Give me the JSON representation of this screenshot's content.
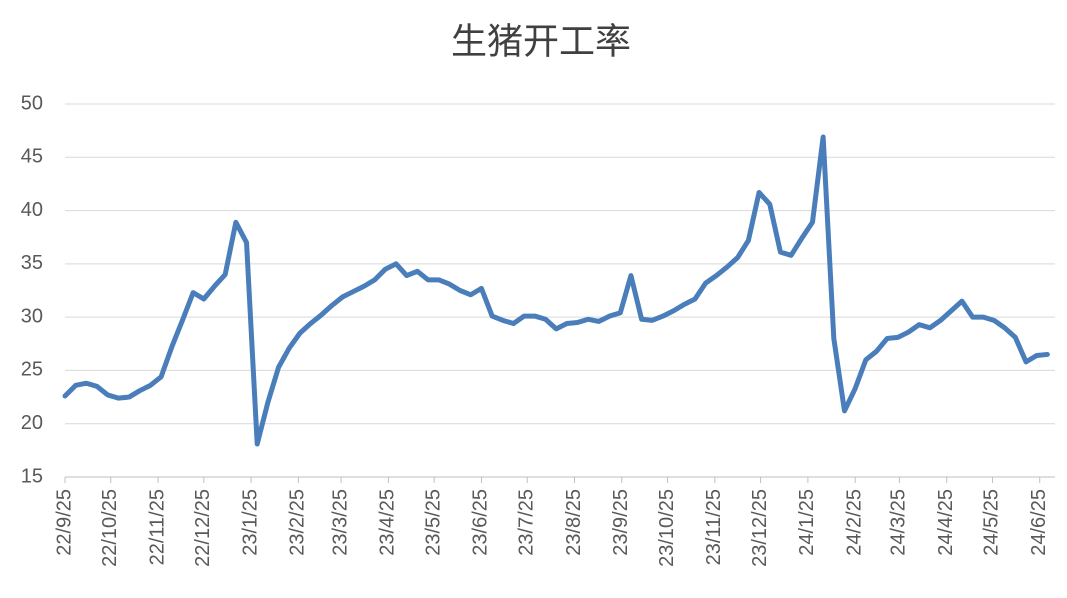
{
  "chart_data": {
    "type": "line",
    "title": "生猪开工率",
    "x": [
      "22/9/25",
      "22/10/2",
      "22/10/9",
      "22/10/16",
      "22/10/23",
      "22/10/30",
      "22/11/6",
      "22/11/13",
      "22/11/20",
      "22/11/27",
      "22/12/4",
      "22/12/11",
      "22/12/18",
      "22/12/25",
      "23/1/1",
      "23/1/8",
      "23/1/15",
      "23/1/22",
      "23/1/29",
      "23/2/5",
      "23/2/12",
      "23/2/19",
      "23/2/26",
      "23/3/5",
      "23/3/12",
      "23/3/19",
      "23/3/26",
      "23/4/2",
      "23/4/9",
      "23/4/16",
      "23/4/23",
      "23/4/30",
      "23/5/7",
      "23/5/14",
      "23/5/21",
      "23/5/28",
      "23/6/4",
      "23/6/11",
      "23/6/18",
      "23/6/25",
      "23/7/2",
      "23/7/9",
      "23/7/16",
      "23/7/23",
      "23/7/30",
      "23/8/6",
      "23/8/13",
      "23/8/20",
      "23/8/27",
      "23/9/3",
      "23/9/10",
      "23/9/17",
      "23/9/24",
      "23/10/1",
      "23/10/8",
      "23/10/15",
      "23/10/22",
      "23/10/29",
      "23/11/5",
      "23/11/12",
      "23/11/19",
      "23/11/26",
      "23/12/3",
      "23/12/10",
      "23/12/17",
      "23/12/24",
      "23/12/31",
      "24/1/7",
      "24/1/14",
      "24/1/21",
      "24/1/28",
      "24/2/4",
      "24/2/11",
      "24/2/18",
      "24/2/25",
      "24/3/3",
      "24/3/10",
      "24/3/17",
      "24/3/24",
      "24/3/31",
      "24/4/7",
      "24/4/14",
      "24/4/21",
      "24/4/28",
      "24/5/5",
      "24/5/12",
      "24/5/19",
      "24/5/26",
      "24/6/2",
      "24/6/9",
      "24/6/16",
      "24/6/23",
      "24/6/30"
    ],
    "series": [
      {
        "color": "#4a7ebb",
        "values": [
          22.6,
          23.6,
          23.8,
          23.5,
          22.7,
          22.4,
          22.5,
          23.1,
          23.6,
          24.4,
          27.2,
          29.7,
          32.3,
          31.7,
          32.9,
          34.0,
          38.9,
          37.0,
          18.1,
          22.0,
          25.3,
          27.1,
          28.5,
          29.4,
          30.2,
          31.1,
          31.9,
          32.4,
          32.9,
          33.5,
          34.5,
          35.0,
          33.9,
          34.3,
          33.5,
          33.5,
          33.1,
          32.5,
          32.1,
          32.7,
          30.1,
          29.7,
          29.4,
          30.1,
          30.1,
          29.8,
          28.9,
          29.4,
          29.5,
          29.8,
          29.6,
          30.1,
          30.4,
          33.9,
          29.8,
          29.7,
          30.1,
          30.6,
          31.2,
          31.7,
          33.2,
          33.9,
          34.7,
          35.6,
          37.2,
          41.7,
          40.6,
          36.1,
          35.8,
          37.4,
          38.9,
          46.9,
          28.0,
          21.2,
          23.3,
          26.0,
          26.8,
          28.0,
          28.1,
          28.6,
          29.3,
          29.0,
          29.7,
          30.6,
          31.5,
          30.0,
          30.0,
          29.7,
          29.0,
          28.1,
          25.8,
          26.4,
          26.5
        ]
      }
    ],
    "xlim": [
      "22/9/25",
      "24/7/5"
    ],
    "xticks": [
      "22/9/25",
      "22/10/25",
      "22/11/25",
      "22/12/25",
      "23/1/25",
      "23/2/25",
      "23/3/25",
      "23/4/25",
      "23/5/25",
      "23/6/25",
      "23/7/25",
      "23/8/25",
      "23/9/25",
      "23/10/25",
      "23/11/25",
      "23/12/25",
      "24/1/25",
      "24/2/25",
      "24/3/25",
      "24/4/25",
      "24/5/25",
      "24/6/25"
    ],
    "ylim": [
      15,
      50
    ],
    "yticks": [
      15,
      20,
      25,
      30,
      35,
      40,
      45,
      50
    ],
    "grid": true
  }
}
